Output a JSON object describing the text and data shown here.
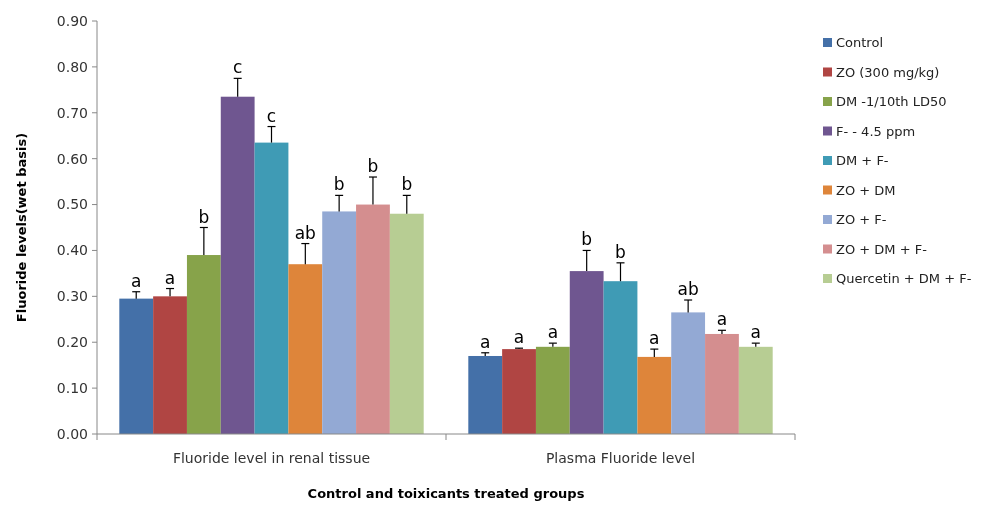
{
  "chart_data": {
    "type": "bar",
    "xlabel": "Control and toixicants treated groups",
    "ylabel": "Fluoride levels(wet basis)",
    "categories": [
      "Fluoride level in renal tissue",
      "Plasma Fluoride level"
    ],
    "ylim": [
      0,
      0.9
    ],
    "yticks": [
      {
        "value": 0,
        "label": "0.00"
      },
      {
        "value": 0.1,
        "label": "0.10"
      },
      {
        "value": 0.2,
        "label": "0.20"
      },
      {
        "value": 0.3,
        "label": "0.30"
      },
      {
        "value": 0.4,
        "label": "0.40"
      },
      {
        "value": 0.5,
        "label": "0.50"
      },
      {
        "value": 0.6,
        "label": "0.60"
      },
      {
        "value": 0.7,
        "label": "0.70"
      },
      {
        "value": 0.8,
        "label": "0.80"
      },
      {
        "value": 0.9,
        "label": "0.90"
      }
    ],
    "grid": false,
    "legend": "right",
    "series": [
      {
        "name": "Control",
        "color": "#4470a8",
        "values": [
          0.295,
          0.17
        ],
        "errors": [
          0.015,
          0.007
        ],
        "value_labels": [
          "a",
          "a"
        ]
      },
      {
        "name": "ZO (300 mg/kg)",
        "color": "#b04543",
        "values": [
          0.3,
          0.185
        ],
        "errors": [
          0.017,
          0.002
        ],
        "value_labels": [
          "a",
          "a"
        ]
      },
      {
        "name": "DM -1/10th LD50",
        "color": "#87a34a",
        "values": [
          0.39,
          0.19
        ],
        "errors": [
          0.06,
          0.008
        ],
        "value_labels": [
          "b",
          "a"
        ]
      },
      {
        "name": "F- - 4.5 ppm",
        "color": "#6f5690",
        "values": [
          0.735,
          0.355
        ],
        "errors": [
          0.04,
          0.045
        ],
        "value_labels": [
          "c",
          "b"
        ]
      },
      {
        "name": "DM  + F-",
        "color": "#3f9bb5",
        "values": [
          0.635,
          0.333
        ],
        "errors": [
          0.035,
          0.04
        ],
        "value_labels": [
          "c",
          "b"
        ]
      },
      {
        "name": "ZO + DM",
        "color": "#de853a",
        "values": [
          0.37,
          0.168
        ],
        "errors": [
          0.045,
          0.017
        ],
        "value_labels": [
          "ab",
          "a"
        ]
      },
      {
        "name": "ZO  + F-",
        "color": "#93a9d4",
        "values": [
          0.485,
          0.265
        ],
        "errors": [
          0.035,
          0.027
        ],
        "value_labels": [
          "b",
          "ab"
        ]
      },
      {
        "name": "ZO + DM  + F-",
        "color": "#d48e8f",
        "values": [
          0.5,
          0.218
        ],
        "errors": [
          0.06,
          0.008
        ],
        "value_labels": [
          "b",
          "a"
        ]
      },
      {
        "name": "Quercetin + DM + F-",
        "color": "#b7cd93",
        "values": [
          0.48,
          0.19
        ],
        "errors": [
          0.04,
          0.008
        ],
        "value_labels": [
          "b",
          "a"
        ]
      }
    ]
  }
}
